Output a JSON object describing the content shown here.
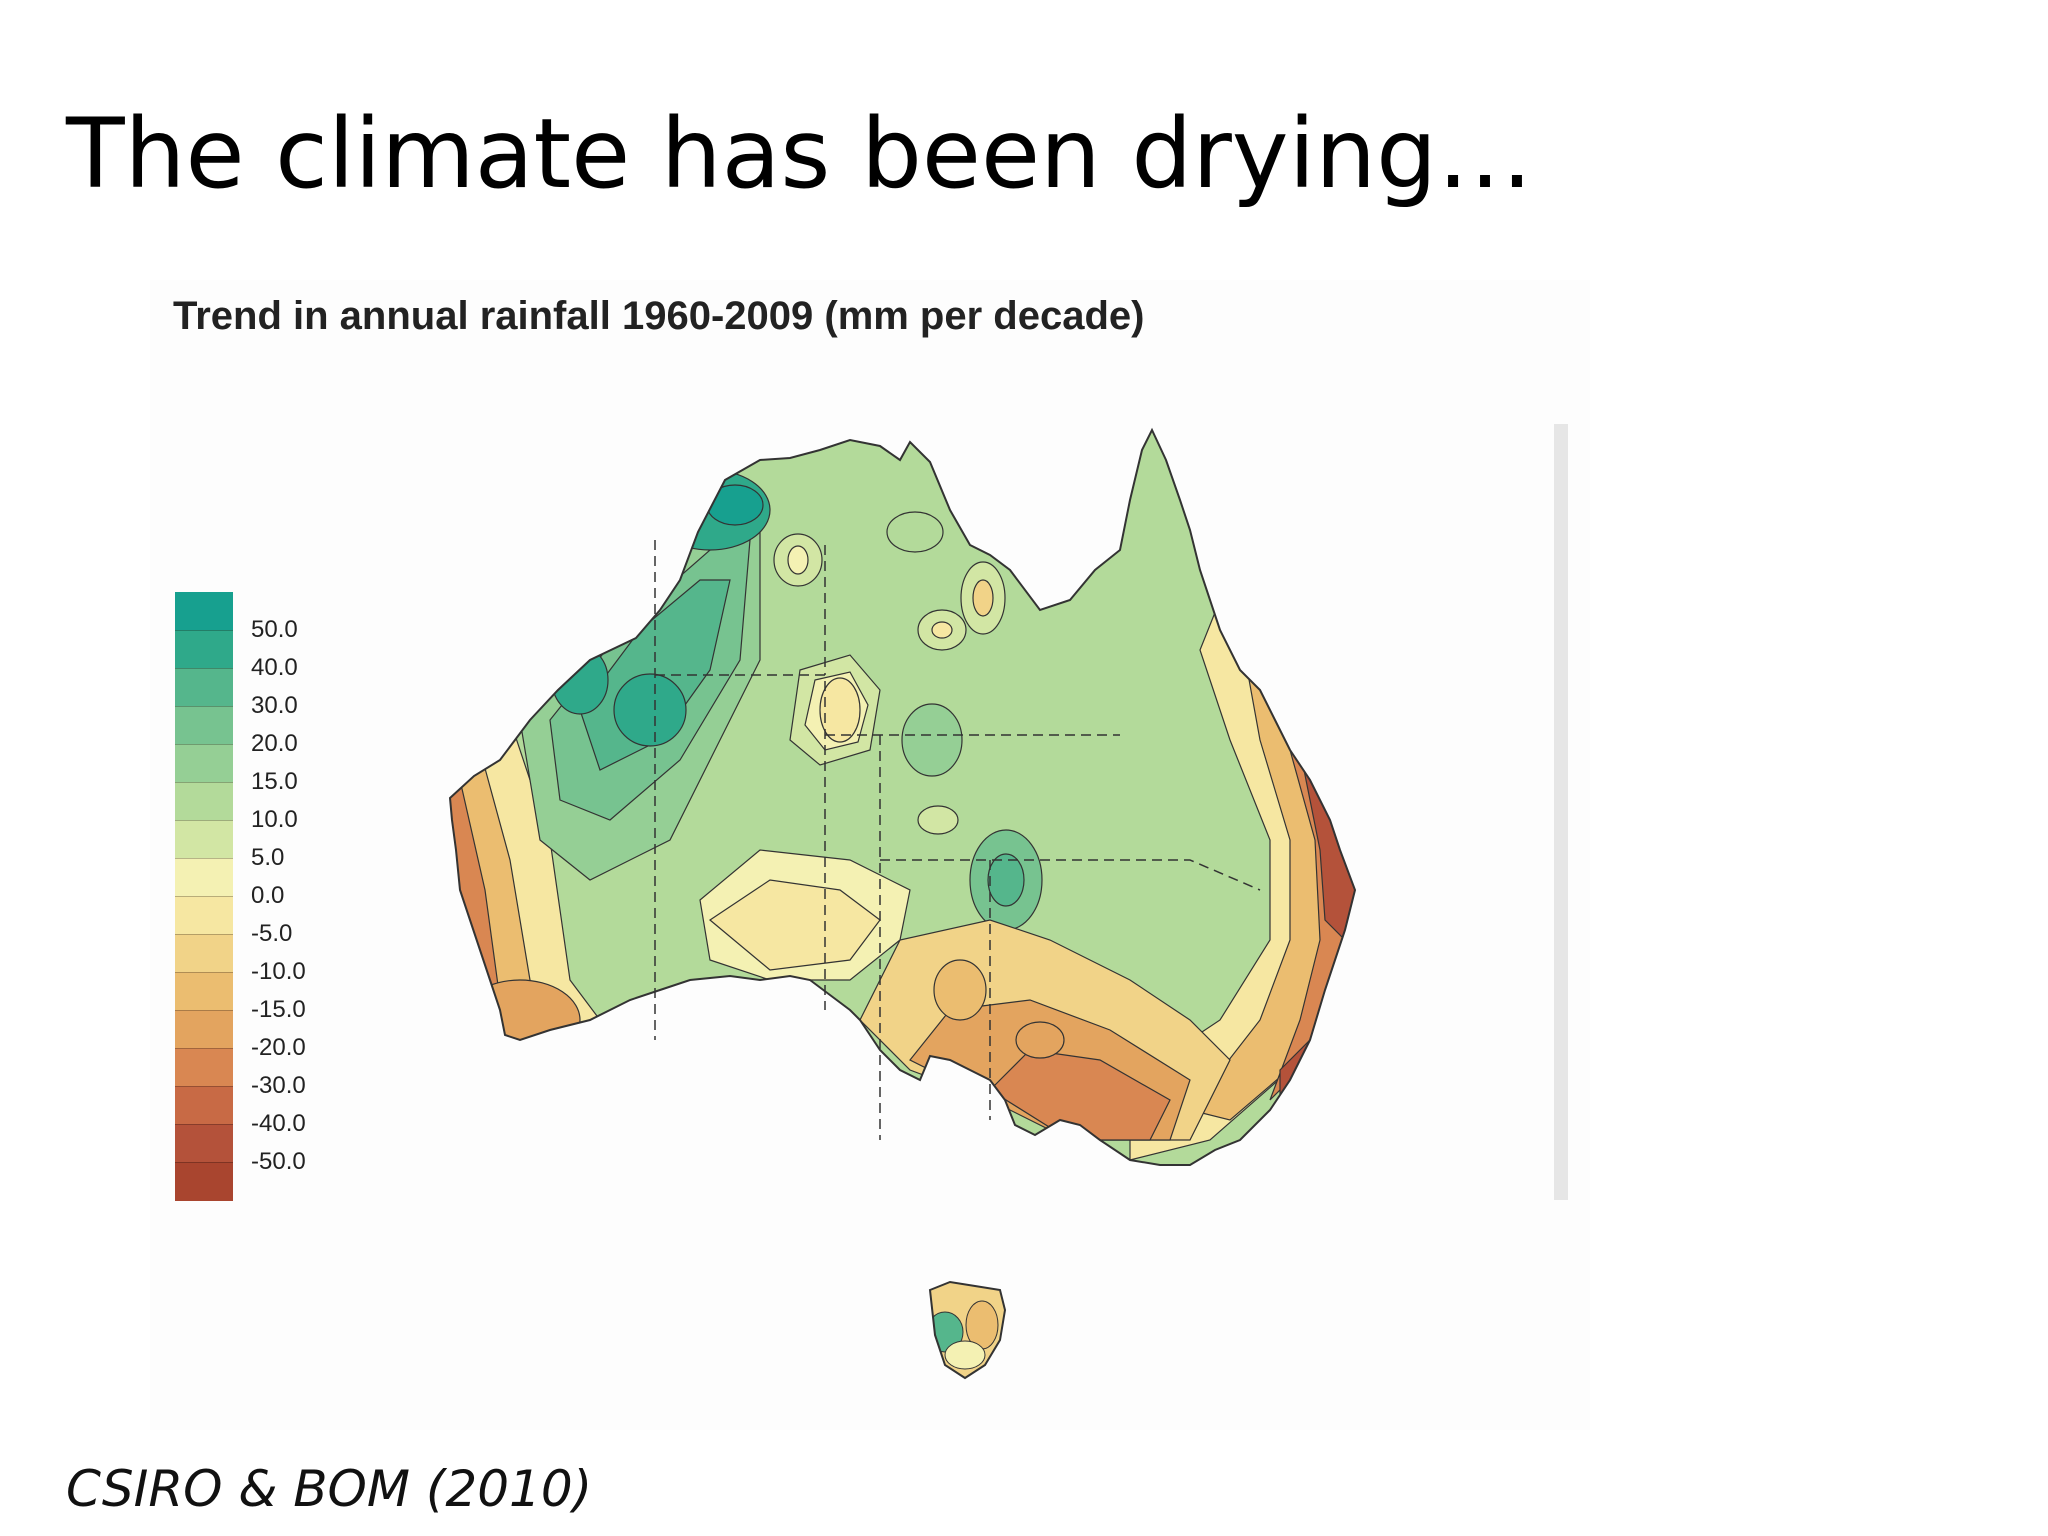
{
  "slide": {
    "title": "The climate has been drying…",
    "citation": "CSIRO & BOM (2010)"
  },
  "map": {
    "title": "Trend in annual rainfall 1960-2009 (mm per decade)",
    "region": "Australia",
    "legend": [
      {
        "label": "50.0",
        "color": "#17a08f"
      },
      {
        "label": "40.0",
        "color": "#2fa98a"
      },
      {
        "label": "30.0",
        "color": "#55b68c"
      },
      {
        "label": "20.0",
        "color": "#77c390"
      },
      {
        "label": "15.0",
        "color": "#95cf95"
      },
      {
        "label": "10.0",
        "color": "#b3da9a"
      },
      {
        "label": "5.0",
        "color": "#d2e6a4"
      },
      {
        "label": "0.0",
        "color": "#f4f1b3"
      },
      {
        "label": "-5.0",
        "color": "#f6e7a2"
      },
      {
        "label": "-10.0",
        "color": "#f1d388"
      },
      {
        "label": "-15.0",
        "color": "#ebbd70"
      },
      {
        "label": "-20.0",
        "color": "#e3a45f"
      },
      {
        "label": "-30.0",
        "color": "#d98752"
      },
      {
        "label": "-40.0",
        "color": "#c86a45"
      },
      {
        "label": "-50.0",
        "color": "#b4523a"
      },
      {
        "label": "",
        "color": "#a9452f"
      }
    ]
  }
}
